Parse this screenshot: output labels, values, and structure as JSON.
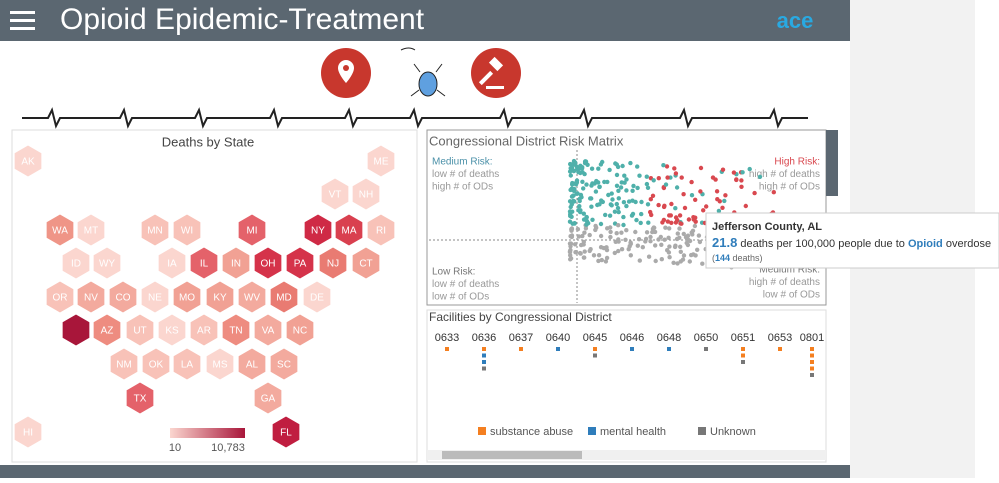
{
  "header": {
    "title": "Opioid Epidemic-Treatment",
    "logo": "ace"
  },
  "deaths_map": {
    "title": "Deaths by State",
    "states": [
      {
        "label": "AK",
        "color": "#fbd6cf"
      },
      {
        "label": "ME",
        "color": "#fbd6cf"
      },
      {
        "label": "VT",
        "color": "#fbd6cf"
      },
      {
        "label": "NH",
        "color": "#fbd6cf"
      },
      {
        "label": "WA",
        "color": "#ef9587"
      },
      {
        "label": "MT",
        "color": "#fbd6cf"
      },
      {
        "label": "MN",
        "color": "#f8c2b8"
      },
      {
        "label": "WI",
        "color": "#f8c2b8"
      },
      {
        "label": "MI",
        "color": "#e4626a"
      },
      {
        "label": "NY",
        "color": "#cf2a45"
      },
      {
        "label": "MA",
        "color": "#d9404f"
      },
      {
        "label": "RI",
        "color": "#f8c2b8"
      },
      {
        "label": "ID",
        "color": "#fbd6cf"
      },
      {
        "label": "WY",
        "color": "#fbd6cf"
      },
      {
        "label": "IA",
        "color": "#fbd6cf"
      },
      {
        "label": "IL",
        "color": "#e4626a"
      },
      {
        "label": "IN",
        "color": "#f1a194"
      },
      {
        "label": "OH",
        "color": "#d5334a"
      },
      {
        "label": "PA",
        "color": "#d5334a"
      },
      {
        "label": "NJ",
        "color": "#e97b72"
      },
      {
        "label": "CT",
        "color": "#f1a194"
      },
      {
        "label": "OR",
        "color": "#f8c2b8"
      },
      {
        "label": "NV",
        "color": "#f3aa9e"
      },
      {
        "label": "CO",
        "color": "#f3aa9e"
      },
      {
        "label": "NE",
        "color": "#fbd6cf"
      },
      {
        "label": "MO",
        "color": "#f1a194"
      },
      {
        "label": "KY",
        "color": "#f1a194"
      },
      {
        "label": "WV",
        "color": "#f3aa9e"
      },
      {
        "label": "MD",
        "color": "#e97b72"
      },
      {
        "label": "DE",
        "color": "#fbd6cf"
      },
      {
        "label": null,
        "color": "#a8163a"
      },
      {
        "label": "AZ",
        "color": "#ee8c80"
      },
      {
        "label": "UT",
        "color": "#f8c2b8"
      },
      {
        "label": "KS",
        "color": "#fbd6cf"
      },
      {
        "label": "AR",
        "color": "#f8c2b8"
      },
      {
        "label": "TN",
        "color": "#ee8c80"
      },
      {
        "label": "VA",
        "color": "#f3aa9e"
      },
      {
        "label": "NC",
        "color": "#f1a194"
      },
      {
        "label": "NM",
        "color": "#f8c2b8"
      },
      {
        "label": "OK",
        "color": "#f8c2b8"
      },
      {
        "label": "LA",
        "color": "#f8c2b8"
      },
      {
        "label": "MS",
        "color": "#fbd6cf"
      },
      {
        "label": "AL",
        "color": "#f3aa9e"
      },
      {
        "label": "SC",
        "color": "#f3aa9e"
      },
      {
        "label": "TX",
        "color": "#e4626a"
      },
      {
        "label": "GA",
        "color": "#f3aa9e"
      },
      {
        "label": "HI",
        "color": "#fbd6cf"
      },
      {
        "label": "FL",
        "color": "#c01e40"
      }
    ],
    "legend": {
      "min": "10",
      "max": "10,783"
    }
  },
  "risk_matrix": {
    "title": "Congressional District Risk Matrix",
    "quadrants": {
      "medium": [
        "Medium Risk:",
        "low # of deaths",
        "high # of ODs"
      ],
      "high": [
        "High Risk:",
        "high # of deaths",
        "high # of ODs"
      ],
      "low": [
        "Low Risk:",
        "low # of deaths",
        "low # of ODs"
      ],
      "medium_low": [
        "Medium Risk:",
        "high # of deaths",
        "low # of ODs"
      ]
    },
    "tooltip": {
      "place": "Jefferson County, AL",
      "rate": 21.8,
      "text1": " deaths per 100,000 people due to ",
      "drug": "Opioid",
      "text2": " overdose",
      "open": "(",
      "deaths": 144,
      "close": " deaths)"
    }
  },
  "facilities": {
    "title": "Facilities by Congressional District",
    "districts": [
      {
        "code": "0633",
        "markers": [
          "#f47f20"
        ]
      },
      {
        "code": "0636",
        "markers": [
          "#f47f20",
          "#2f7dbb",
          "#2f7dbb",
          "#777"
        ]
      },
      {
        "code": "0637",
        "markers": [
          "#f47f20"
        ]
      },
      {
        "code": "0640",
        "markers": [
          "#2f7dbb"
        ]
      },
      {
        "code": "0645",
        "markers": [
          "#f47f20",
          "#777"
        ]
      },
      {
        "code": "0646",
        "markers": [
          "#2f7dbb"
        ]
      },
      {
        "code": "0648",
        "markers": [
          "#2f7dbb"
        ]
      },
      {
        "code": "0650",
        "markers": [
          "#777"
        ]
      },
      {
        "code": "0651",
        "markers": [
          "#f47f20",
          "#f47f20",
          "#777"
        ]
      },
      {
        "code": "0653",
        "markers": [
          "#f47f20"
        ]
      },
      {
        "code": "0801",
        "markers": [
          "#f47f20",
          "#f47f20",
          "#f47f20",
          "#f47f20",
          "#777"
        ]
      }
    ],
    "legend": [
      {
        "name": "substance abuse",
        "color": "#f47f20"
      },
      {
        "name": "mental health",
        "color": "#2f7dbb"
      },
      {
        "name": "Unknown",
        "color": "#777"
      }
    ]
  }
}
